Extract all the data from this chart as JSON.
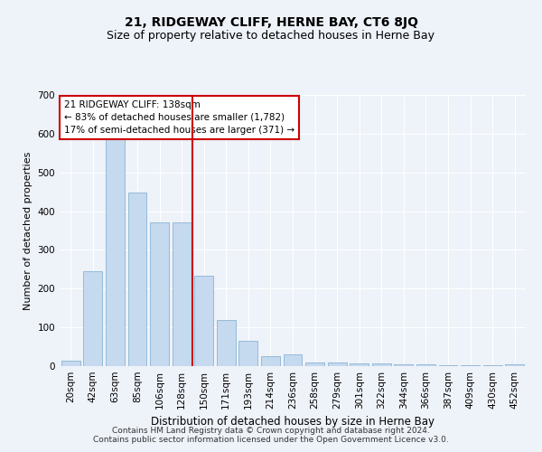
{
  "title": "21, RIDGEWAY CLIFF, HERNE BAY, CT6 8JQ",
  "subtitle": "Size of property relative to detached houses in Herne Bay",
  "xlabel": "Distribution of detached houses by size in Herne Bay",
  "ylabel": "Number of detached properties",
  "categories": [
    "20sqm",
    "42sqm",
    "63sqm",
    "85sqm",
    "106sqm",
    "128sqm",
    "150sqm",
    "171sqm",
    "193sqm",
    "214sqm",
    "236sqm",
    "258sqm",
    "279sqm",
    "301sqm",
    "322sqm",
    "344sqm",
    "366sqm",
    "387sqm",
    "409sqm",
    "430sqm",
    "452sqm"
  ],
  "values": [
    15,
    245,
    585,
    447,
    370,
    370,
    233,
    120,
    65,
    25,
    30,
    10,
    10,
    8,
    7,
    5,
    5,
    2,
    2,
    2,
    5
  ],
  "bar_color": "#c5d9ef",
  "bar_edge_color": "#8ab4d4",
  "highlight_color": "#cc0000",
  "vline_index": 5.5,
  "ylim": [
    0,
    700
  ],
  "yticks": [
    0,
    100,
    200,
    300,
    400,
    500,
    600,
    700
  ],
  "annotation_text": "21 RIDGEWAY CLIFF: 138sqm\n← 83% of detached houses are smaller (1,782)\n17% of semi-detached houses are larger (371) →",
  "annotation_box_facecolor": "#ffffff",
  "annotation_box_edgecolor": "#cc0000",
  "footer_line1": "Contains HM Land Registry data © Crown copyright and database right 2024.",
  "footer_line2": "Contains public sector information licensed under the Open Government Licence v3.0.",
  "bg_color": "#eef2f9",
  "title_fontsize": 10,
  "subtitle_fontsize": 9,
  "ylabel_fontsize": 8,
  "xlabel_fontsize": 8.5,
  "tick_fontsize": 7.5,
  "annotation_fontsize": 7.5,
  "footer_fontsize": 6.5
}
